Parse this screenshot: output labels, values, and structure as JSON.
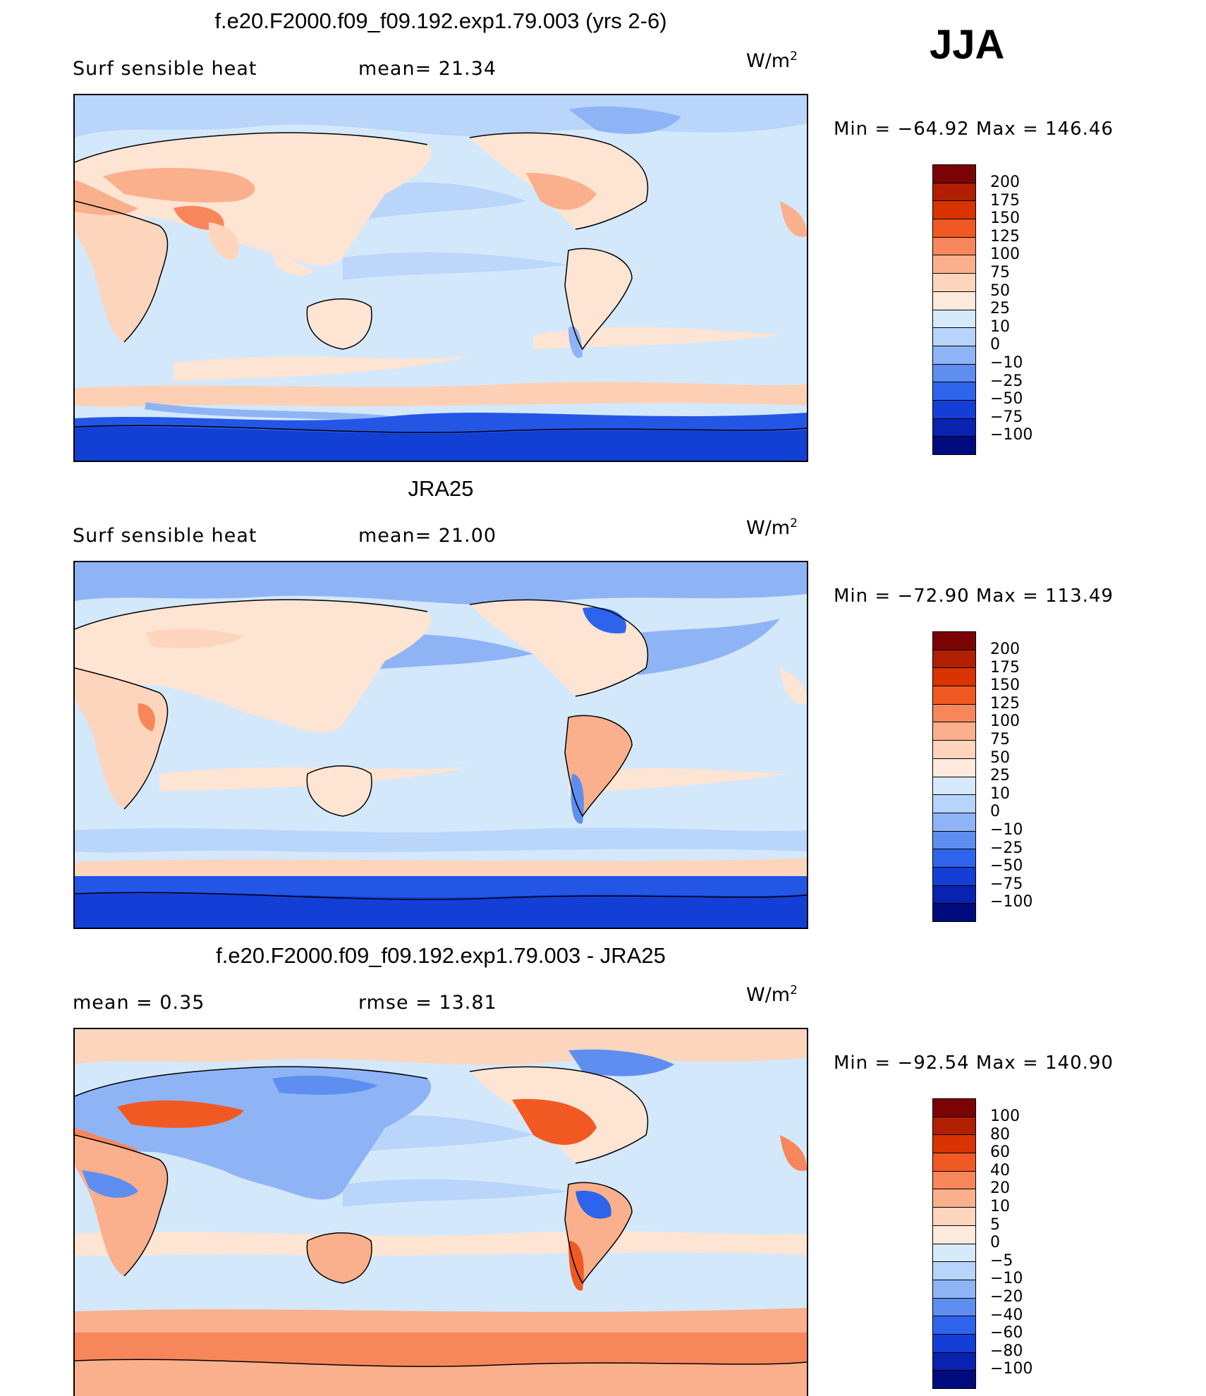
{
  "season": "JJA",
  "panels": [
    {
      "title": "f.e20.F2000.f09_f09.192.exp1.79.003 (yrs 2-6)",
      "left_label": "Surf  sensible  heat",
      "right_label": "mean=   21.34",
      "units": "W/m",
      "units_sup": "2",
      "minmax": "Min  =  −64.92  Max  =  146.46",
      "colorbar": {
        "labels": [
          "200",
          "175",
          "150",
          "125",
          "100",
          "75",
          "50",
          "25",
          "10",
          "0",
          "−10",
          "−25",
          "−50",
          "−75",
          "−100"
        ],
        "colors": [
          "#7a0403",
          "#b01f00",
          "#d83300",
          "#f05a22",
          "#f7875a",
          "#fab08c",
          "#fdd5bc",
          "#fdeadd",
          "#d6e9fa",
          "#b7d4fa",
          "#8fb4f5",
          "#5e8ff0",
          "#2e63ec",
          "#133fd6",
          "#0a22b0",
          "#000c7d"
        ]
      }
    },
    {
      "title": "JRA25",
      "left_label": "Surf  sensible  heat",
      "right_label": "mean=   21.00",
      "units": "W/m",
      "units_sup": "2",
      "minmax": "Min  =  −72.90  Max  =  113.49",
      "colorbar": {
        "labels": [
          "200",
          "175",
          "150",
          "125",
          "100",
          "75",
          "50",
          "25",
          "10",
          "0",
          "−10",
          "−25",
          "−50",
          "−75",
          "−100"
        ],
        "colors": [
          "#7a0403",
          "#b01f00",
          "#d83300",
          "#f05a22",
          "#f7875a",
          "#fab08c",
          "#fdd5bc",
          "#fdeadd",
          "#d6e9fa",
          "#b7d4fa",
          "#8fb4f5",
          "#5e8ff0",
          "#2e63ec",
          "#133fd6",
          "#0a22b0",
          "#000c7d"
        ]
      }
    },
    {
      "title": "f.e20.F2000.f09_f09.192.exp1.79.003 - JRA25",
      "left_label": "mean  =      0.35",
      "right_label": "rmse  =     13.81",
      "units": "W/m",
      "units_sup": "2",
      "minmax": "Min  =  −92.54  Max  =  140.90",
      "colorbar": {
        "labels": [
          "100",
          "80",
          "60",
          "40",
          "20",
          "10",
          "5",
          "0",
          "−5",
          "−10",
          "−20",
          "−40",
          "−60",
          "−80",
          "−100"
        ],
        "colors": [
          "#7a0403",
          "#b01f00",
          "#d83300",
          "#f05a22",
          "#f7875a",
          "#fab08c",
          "#fdd5bc",
          "#fdeadd",
          "#d6e9fa",
          "#b7d4fa",
          "#8fb4f5",
          "#5e8ff0",
          "#2e63ec",
          "#133fd6",
          "#0a22b0",
          "#000c7d"
        ]
      }
    }
  ]
}
